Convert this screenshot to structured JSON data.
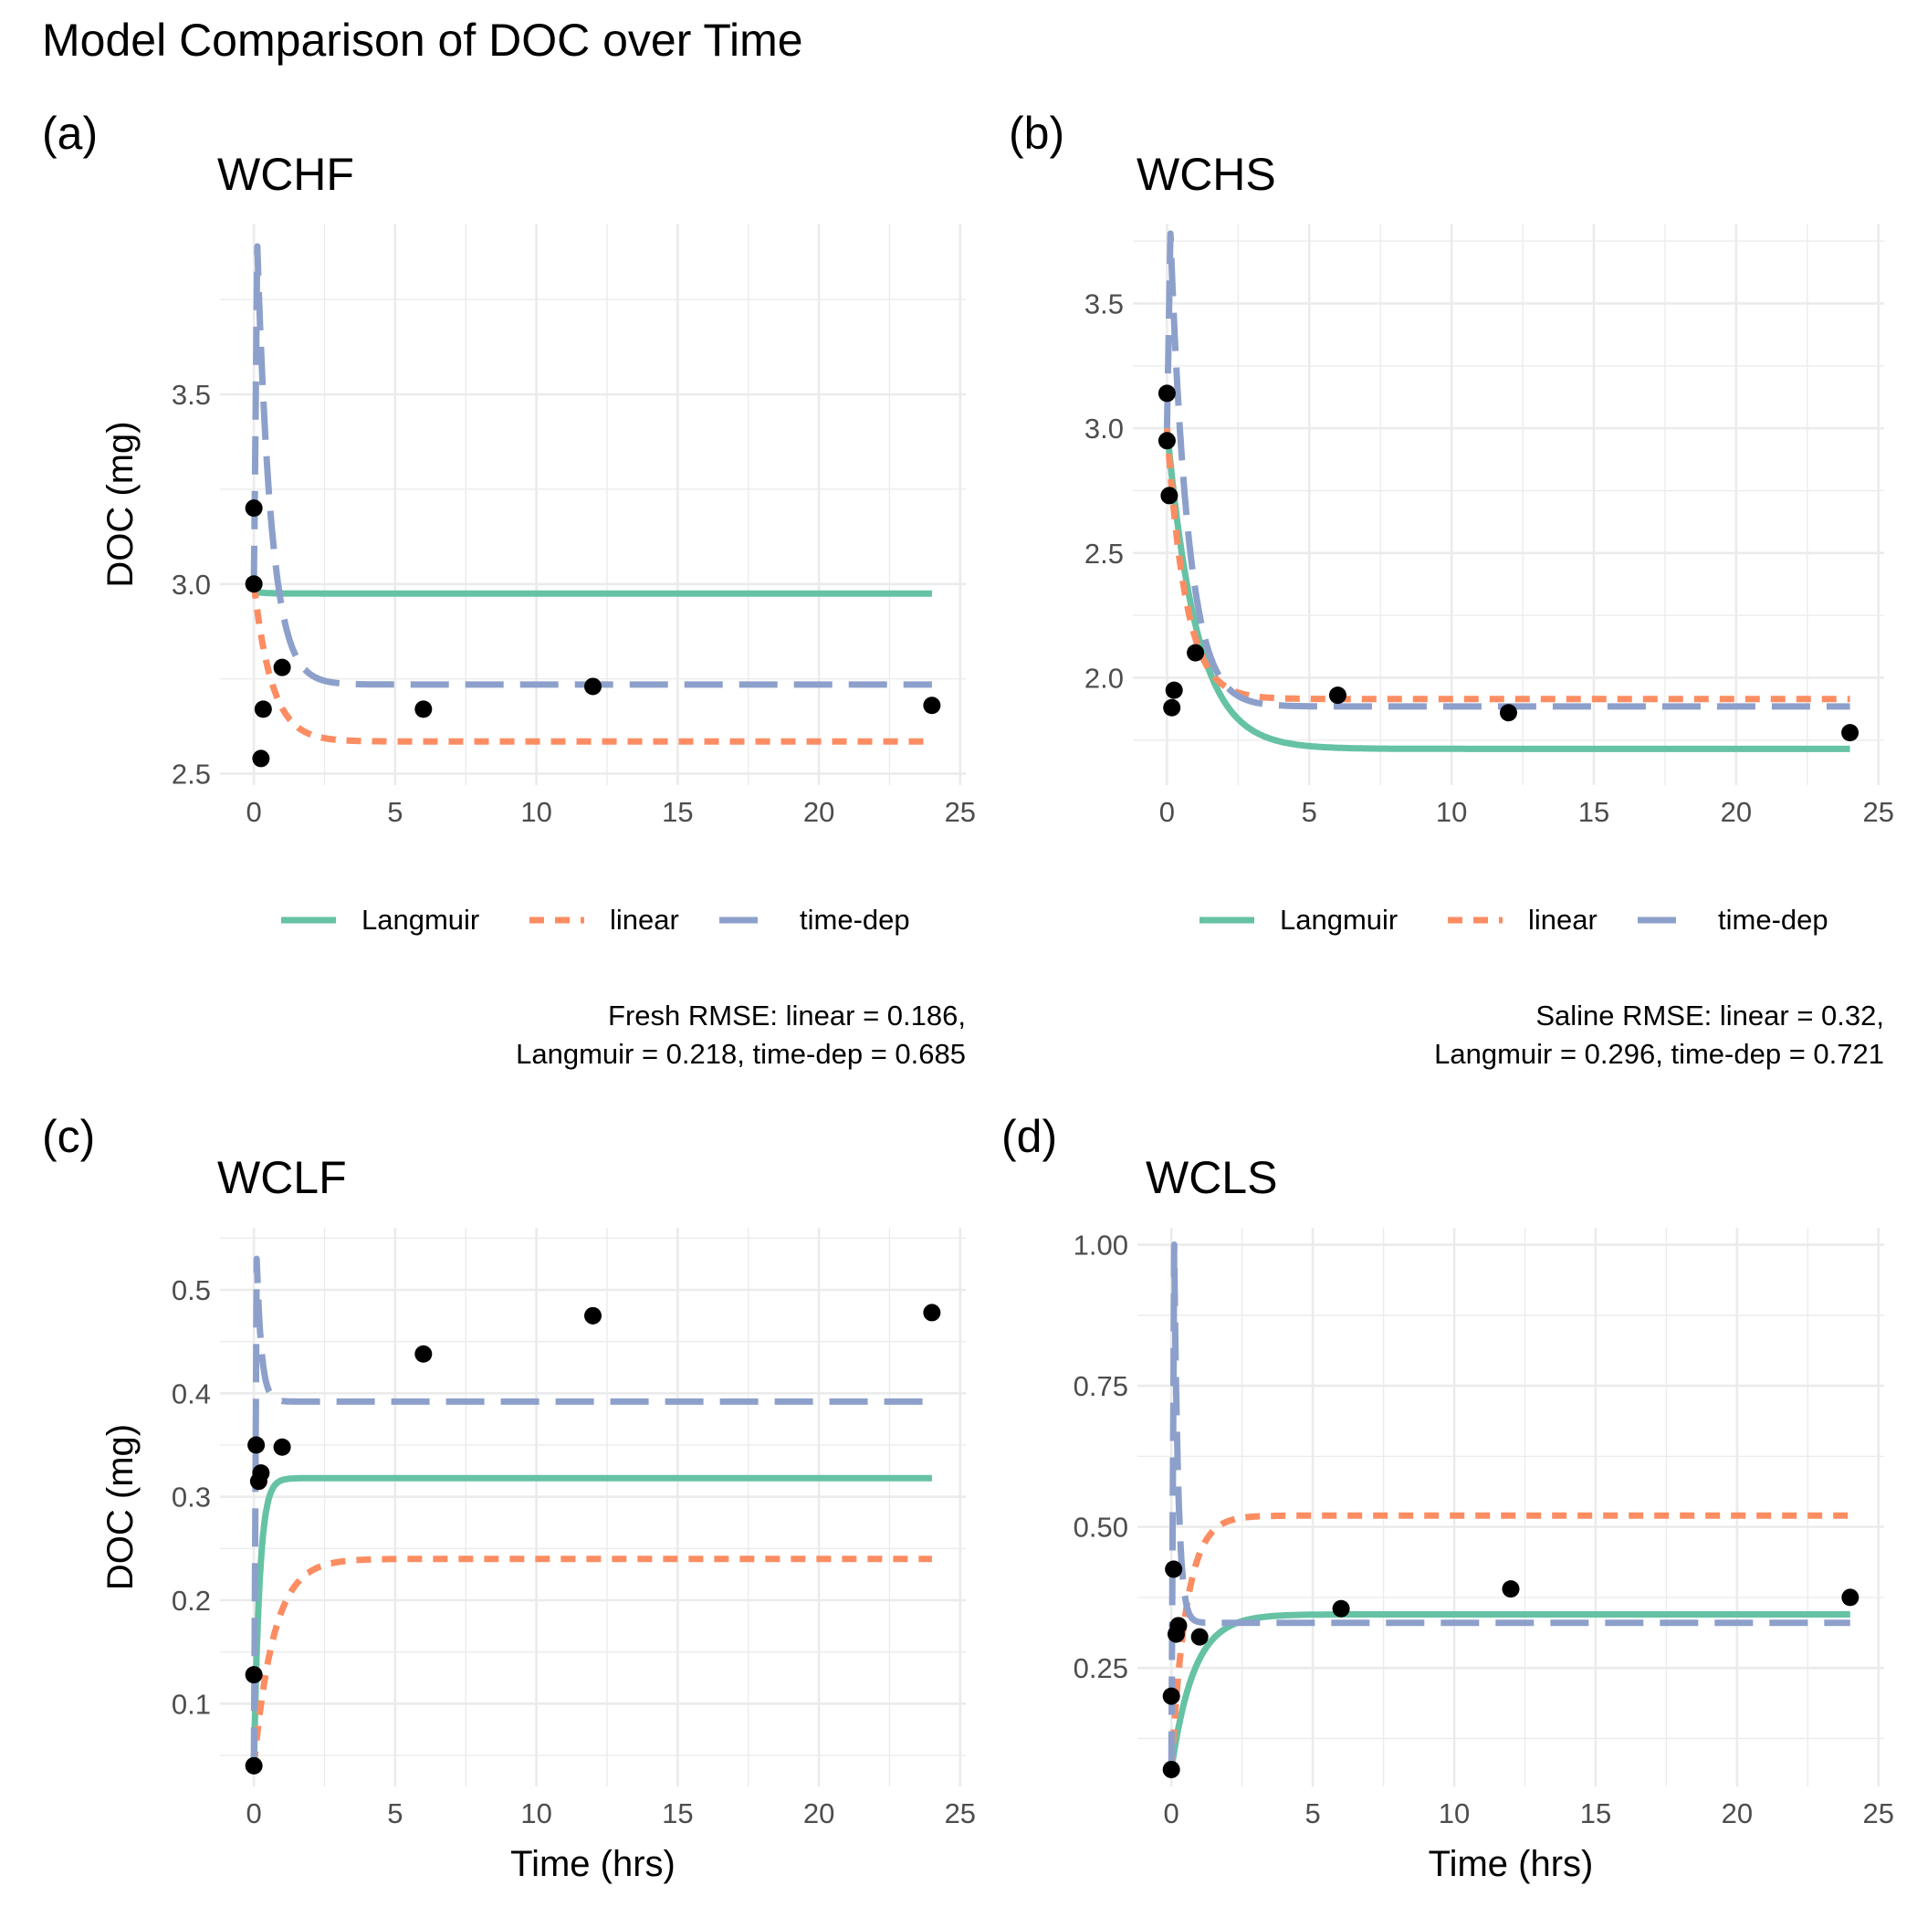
{
  "title": "Model Comparison of DOC over Time",
  "colors": {
    "langmuir": "#66c2a5",
    "linear": "#fc8d62",
    "timedep": "#8da0cb",
    "points": "#000000"
  },
  "chart_data": [
    {
      "tag": "(a)",
      "title": "WCHF",
      "type": "line",
      "xlabel": "",
      "ylabel": "DOC (mg)",
      "xlim": [
        -1.2,
        25.2
      ],
      "ylim": [
        2.47,
        3.95
      ],
      "xticks": [
        0,
        5,
        10,
        15,
        20,
        25
      ],
      "yticks": [
        2.5,
        3.0,
        3.5
      ],
      "ytick_labels": [
        "2.5",
        "3.0",
        "3.5"
      ],
      "grid": true,
      "legend": {
        "position": "bottom",
        "entries": [
          "Langmuir",
          "linear",
          "time-dep"
        ]
      },
      "caption": [
        "Fresh RMSE: linear = 0.186,",
        "Langmuir = 0.218, time-dep = 0.685"
      ],
      "series": [
        {
          "name": "Langmuir",
          "model": {
            "start": 2.98,
            "end": 2.975,
            "rate": 3.0,
            "peak": 0,
            "tpeak": 0
          }
        },
        {
          "name": "linear",
          "model": {
            "start": 3.0,
            "end": 2.585,
            "rate": 1.55,
            "peak": 0,
            "tpeak": 0
          }
        },
        {
          "name": "time-dep",
          "model": {
            "start": 3.0,
            "end": 2.735,
            "rate": 2.0,
            "peak": 3.89,
            "tpeak": 0.12
          }
        }
      ],
      "points": [
        {
          "x": 0,
          "y": 3.2
        },
        {
          "x": 0,
          "y": 3.0
        },
        {
          "x": 0.25,
          "y": 2.54
        },
        {
          "x": 0.33,
          "y": 2.67
        },
        {
          "x": 1,
          "y": 2.78
        },
        {
          "x": 6,
          "y": 2.67
        },
        {
          "x": 12,
          "y": 2.73
        },
        {
          "x": 24,
          "y": 2.68
        }
      ]
    },
    {
      "tag": "(b)",
      "title": "WCHS",
      "type": "line",
      "xlabel": "",
      "ylabel": "",
      "xlim": [
        -1.2,
        25.2
      ],
      "ylim": [
        1.57,
        3.82
      ],
      "xticks": [
        0,
        5,
        10,
        15,
        20,
        25
      ],
      "yticks": [
        2.0,
        2.5,
        3.0,
        3.5
      ],
      "ytick_labels": [
        "2.0",
        "2.5",
        "3.0",
        "3.5"
      ],
      "grid": true,
      "legend": {
        "position": "bottom",
        "entries": [
          "Langmuir",
          "linear",
          "time-dep"
        ]
      },
      "caption": [
        "Saline RMSE: linear = 0.32,",
        "Langmuir = 0.296, time-dep = 0.721"
      ],
      "series": [
        {
          "name": "Langmuir",
          "model": {
            "start": 3.0,
            "end": 1.715,
            "rate": 0.95,
            "peak": 0,
            "tpeak": 0
          }
        },
        {
          "name": "linear",
          "model": {
            "start": 3.0,
            "end": 1.915,
            "rate": 1.5,
            "peak": 0,
            "tpeak": 0
          }
        },
        {
          "name": "time-dep",
          "model": {
            "start": 3.0,
            "end": 1.885,
            "rate": 1.6,
            "peak": 3.78,
            "tpeak": 0.12
          }
        }
      ],
      "points": [
        {
          "x": 0,
          "y": 3.14
        },
        {
          "x": 0,
          "y": 2.95
        },
        {
          "x": 0.08,
          "y": 2.73
        },
        {
          "x": 0.17,
          "y": 1.88
        },
        {
          "x": 0.25,
          "y": 1.95
        },
        {
          "x": 1,
          "y": 2.1
        },
        {
          "x": 6,
          "y": 1.93
        },
        {
          "x": 12,
          "y": 1.86
        },
        {
          "x": 24,
          "y": 1.78
        }
      ]
    },
    {
      "tag": "(c)",
      "title": "WCLF",
      "type": "line",
      "xlabel": "Time (hrs)",
      "ylabel": "DOC (mg)",
      "xlim": [
        -1.2,
        25.2
      ],
      "ylim": [
        0.02,
        0.56
      ],
      "xticks": [
        0,
        5,
        10,
        15,
        20,
        25
      ],
      "yticks": [
        0.1,
        0.2,
        0.3,
        0.4,
        0.5
      ],
      "ytick_labels": [
        "0.1",
        "0.2",
        "0.3",
        "0.4",
        "0.5"
      ],
      "grid": true,
      "legend": null,
      "caption": [],
      "series": [
        {
          "name": "Langmuir",
          "model": {
            "start": 0.04,
            "end": 0.318,
            "rate": 5.0,
            "peak": 0,
            "tpeak": 0
          }
        },
        {
          "name": "linear",
          "model": {
            "start": 0.04,
            "end": 0.24,
            "rate": 1.4,
            "peak": 0,
            "tpeak": 0
          }
        },
        {
          "name": "time-dep",
          "model": {
            "start": 0.04,
            "end": 0.392,
            "rate": 6.0,
            "peak": 0.53,
            "tpeak": 0.1
          }
        }
      ],
      "points": [
        {
          "x": 0,
          "y": 0.04
        },
        {
          "x": 0,
          "y": 0.128
        },
        {
          "x": 0.08,
          "y": 0.35
        },
        {
          "x": 0.17,
          "y": 0.315
        },
        {
          "x": 0.25,
          "y": 0.323
        },
        {
          "x": 1,
          "y": 0.348
        },
        {
          "x": 6,
          "y": 0.438
        },
        {
          "x": 12,
          "y": 0.475
        },
        {
          "x": 24,
          "y": 0.478
        }
      ]
    },
    {
      "tag": "(d)",
      "title": "WCLS",
      "type": "line",
      "xlabel": "Time (hrs)",
      "ylabel": "",
      "xlim": [
        -1.2,
        25.2
      ],
      "ylim": [
        0.04,
        1.03
      ],
      "xticks": [
        0,
        5,
        10,
        15,
        20,
        25
      ],
      "yticks": [
        0.25,
        0.5,
        0.75,
        1.0
      ],
      "ytick_labels": [
        "0.25",
        "0.50",
        "0.75",
        "1.00"
      ],
      "grid": true,
      "legend": null,
      "caption": [],
      "series": [
        {
          "name": "Langmuir",
          "model": {
            "start": 0.07,
            "end": 0.345,
            "rate": 1.25,
            "peak": 0,
            "tpeak": 0
          }
        },
        {
          "name": "linear",
          "model": {
            "start": 0.07,
            "end": 0.52,
            "rate": 1.9,
            "peak": 0,
            "tpeak": 0
          }
        },
        {
          "name": "time-dep",
          "model": {
            "start": 0.07,
            "end": 0.33,
            "rate": 7.0,
            "peak": 1.0,
            "tpeak": 0.1
          }
        }
      ],
      "points": [
        {
          "x": 0,
          "y": 0.07
        },
        {
          "x": 0,
          "y": 0.2
        },
        {
          "x": 0.08,
          "y": 0.425
        },
        {
          "x": 0.17,
          "y": 0.31
        },
        {
          "x": 0.25,
          "y": 0.325
        },
        {
          "x": 1,
          "y": 0.305
        },
        {
          "x": 6,
          "y": 0.355
        },
        {
          "x": 12,
          "y": 0.39
        },
        {
          "x": 24,
          "y": 0.375
        }
      ]
    }
  ]
}
